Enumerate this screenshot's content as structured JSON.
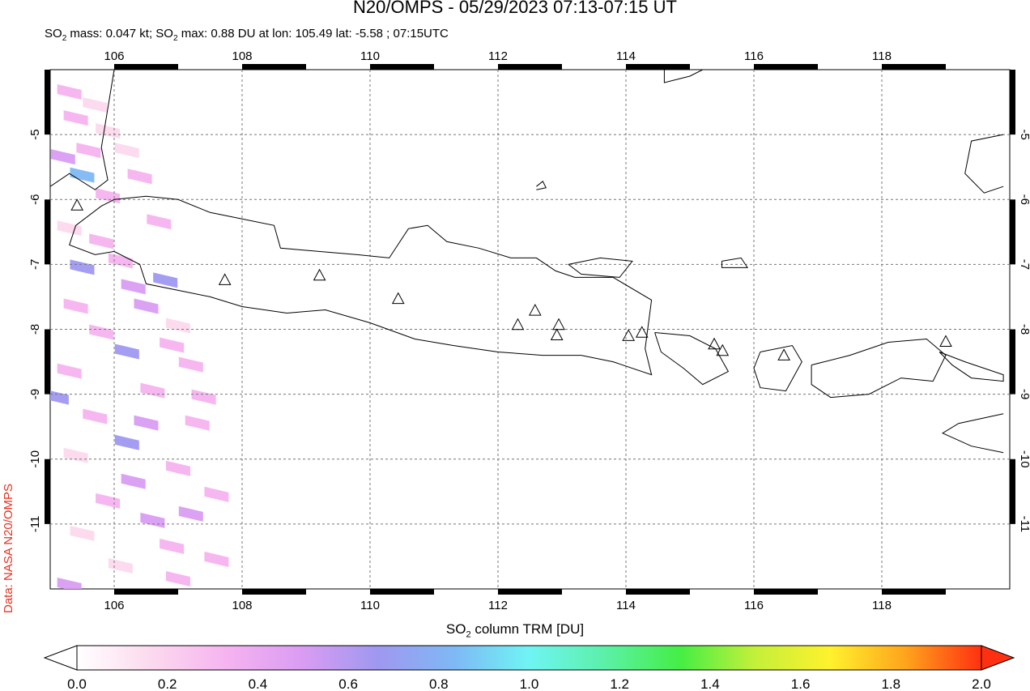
{
  "title": "N20/OMPS - 05/29/2023 07:13-07:15 UT",
  "subtitle": {
    "mass_prefix": "SO",
    "mass_sub": "2",
    "mass_text": " mass: 0.047 kt; SO",
    "max_sub": "2",
    "max_text": " max: 0.88 DU at lon: 105.49 lat: -5.58 ; 07:15UTC"
  },
  "credit": "Data: NASA N20/OMPS",
  "map": {
    "lon_range": [
      105.0,
      120.0
    ],
    "lat_range": [
      -12.0,
      -4.0
    ],
    "lon_ticks": [
      "106",
      "108",
      "110",
      "112",
      "114",
      "116",
      "118"
    ],
    "lat_ticks": [
      "-5",
      "-6",
      "-7",
      "-8",
      "-9",
      "-10",
      "-11"
    ],
    "grid": "dashed",
    "max_marker": {
      "lon": 105.49,
      "lat": -5.58
    }
  },
  "colorbar": {
    "label_prefix": "SO",
    "label_sub": "2",
    "label_suffix": " column TRM [DU]",
    "ticks": [
      "0.0",
      "0.2",
      "0.4",
      "0.6",
      "0.8",
      "1.0",
      "1.2",
      "1.4",
      "1.6",
      "1.8",
      "2.0"
    ],
    "range": [
      0.0,
      2.0
    ],
    "colors": [
      "#ffffff",
      "#fcd9ee",
      "#f5b3f0",
      "#d99cf2",
      "#9f98f0",
      "#7fb8f5",
      "#6ff4f4",
      "#5cf0a8",
      "#45ee45",
      "#c4f03a",
      "#fff12d",
      "#ffa31c",
      "#ff3011"
    ]
  },
  "volcanoes": [
    {
      "lon": 105.42,
      "lat": -6.1
    },
    {
      "lon": 107.73,
      "lat": -7.25
    },
    {
      "lon": 109.21,
      "lat": -7.18
    },
    {
      "lon": 110.44,
      "lat": -7.54
    },
    {
      "lon": 112.31,
      "lat": -7.94
    },
    {
      "lon": 112.58,
      "lat": -7.72
    },
    {
      "lon": 112.92,
      "lat": -8.1
    },
    {
      "lon": 112.95,
      "lat": -7.94
    },
    {
      "lon": 114.04,
      "lat": -8.11
    },
    {
      "lon": 114.25,
      "lat": -8.06
    },
    {
      "lon": 115.38,
      "lat": -8.24
    },
    {
      "lon": 115.51,
      "lat": -8.34
    },
    {
      "lon": 116.47,
      "lat": -8.41
    },
    {
      "lon": 119.0,
      "lat": -8.2
    }
  ],
  "so2_pixels": [
    {
      "lon": 105.3,
      "lat": -4.3,
      "v": 0.3
    },
    {
      "lon": 105.7,
      "lat": -4.5,
      "v": 0.2
    },
    {
      "lon": 105.4,
      "lat": -4.7,
      "v": 0.25
    },
    {
      "lon": 105.9,
      "lat": -4.9,
      "v": 0.15
    },
    {
      "lon": 105.2,
      "lat": -5.3,
      "v": 0.55
    },
    {
      "lon": 105.6,
      "lat": -5.2,
      "v": 0.35
    },
    {
      "lon": 106.2,
      "lat": -5.2,
      "v": 0.2
    },
    {
      "lon": 105.5,
      "lat": -5.58,
      "v": 0.88
    },
    {
      "lon": 106.4,
      "lat": -5.6,
      "v": 0.35
    },
    {
      "lon": 105.9,
      "lat": -5.9,
      "v": 0.3
    },
    {
      "lon": 106.7,
      "lat": -6.3,
      "v": 0.25
    },
    {
      "lon": 105.3,
      "lat": -6.4,
      "v": 0.2
    },
    {
      "lon": 105.8,
      "lat": -6.6,
      "v": 0.3
    },
    {
      "lon": 105.5,
      "lat": -7.0,
      "v": 0.65
    },
    {
      "lon": 106.1,
      "lat": -6.9,
      "v": 0.4
    },
    {
      "lon": 106.8,
      "lat": -7.2,
      "v": 0.6
    },
    {
      "lon": 106.3,
      "lat": -7.3,
      "v": 0.55
    },
    {
      "lon": 105.4,
      "lat": -7.6,
      "v": 0.3
    },
    {
      "lon": 106.5,
      "lat": -7.6,
      "v": 0.45
    },
    {
      "lon": 107.0,
      "lat": -7.9,
      "v": 0.2
    },
    {
      "lon": 105.8,
      "lat": -8.0,
      "v": 0.35
    },
    {
      "lon": 106.2,
      "lat": -8.3,
      "v": 0.65
    },
    {
      "lon": 106.9,
      "lat": -8.2,
      "v": 0.4
    },
    {
      "lon": 105.3,
      "lat": -8.6,
      "v": 0.3
    },
    {
      "lon": 107.2,
      "lat": -8.5,
      "v": 0.35
    },
    {
      "lon": 106.6,
      "lat": -8.9,
      "v": 0.3
    },
    {
      "lon": 105.1,
      "lat": -9.0,
      "v": 0.6
    },
    {
      "lon": 107.4,
      "lat": -9.0,
      "v": 0.4
    },
    {
      "lon": 105.7,
      "lat": -9.3,
      "v": 0.25
    },
    {
      "lon": 106.5,
      "lat": -9.4,
      "v": 0.55
    },
    {
      "lon": 107.3,
      "lat": -9.4,
      "v": 0.3
    },
    {
      "lon": 106.2,
      "lat": -9.7,
      "v": 0.6
    },
    {
      "lon": 105.4,
      "lat": -9.9,
      "v": 0.2
    },
    {
      "lon": 107.0,
      "lat": -10.1,
      "v": 0.25
    },
    {
      "lon": 106.3,
      "lat": -10.3,
      "v": 0.45
    },
    {
      "lon": 107.6,
      "lat": -10.5,
      "v": 0.3
    },
    {
      "lon": 105.9,
      "lat": -10.6,
      "v": 0.25
    },
    {
      "lon": 107.2,
      "lat": -10.8,
      "v": 0.55
    },
    {
      "lon": 106.6,
      "lat": -10.9,
      "v": 0.45
    },
    {
      "lon": 105.5,
      "lat": -11.1,
      "v": 0.2
    },
    {
      "lon": 106.9,
      "lat": -11.3,
      "v": 0.3
    },
    {
      "lon": 107.6,
      "lat": -11.5,
      "v": 0.35
    },
    {
      "lon": 105.3,
      "lat": -11.9,
      "v": 0.55
    },
    {
      "lon": 107.0,
      "lat": -11.8,
      "v": 0.25
    },
    {
      "lon": 106.1,
      "lat": -11.6,
      "v": 0.2
    }
  ],
  "coastlines": [
    [
      [
        106.0,
        -6.0
      ],
      [
        106.5,
        -5.95
      ],
      [
        107.0,
        -6.0
      ],
      [
        107.5,
        -6.2
      ],
      [
        108.0,
        -6.3
      ],
      [
        108.5,
        -6.4
      ],
      [
        108.6,
        -6.75
      ],
      [
        109.2,
        -6.8
      ],
      [
        109.8,
        -6.85
      ],
      [
        110.3,
        -6.9
      ],
      [
        110.6,
        -6.45
      ],
      [
        110.9,
        -6.4
      ],
      [
        111.2,
        -6.65
      ],
      [
        111.7,
        -6.75
      ],
      [
        112.2,
        -6.9
      ],
      [
        112.6,
        -6.9
      ],
      [
        112.9,
        -7.1
      ],
      [
        113.2,
        -7.2
      ],
      [
        113.8,
        -7.2
      ],
      [
        114.4,
        -7.55
      ],
      [
        114.3,
        -8.3
      ],
      [
        114.4,
        -8.7
      ],
      [
        113.8,
        -8.5
      ],
      [
        113.3,
        -8.4
      ],
      [
        112.7,
        -8.4
      ],
      [
        112.0,
        -8.35
      ],
      [
        111.3,
        -8.25
      ],
      [
        110.7,
        -8.15
      ],
      [
        110.0,
        -7.9
      ],
      [
        109.3,
        -7.7
      ],
      [
        108.7,
        -7.75
      ],
      [
        108.0,
        -7.65
      ],
      [
        107.5,
        -7.5
      ],
      [
        107.0,
        -7.4
      ],
      [
        106.5,
        -7.3
      ],
      [
        106.4,
        -7.0
      ],
      [
        106.0,
        -6.8
      ],
      [
        105.7,
        -6.85
      ],
      [
        105.3,
        -6.7
      ],
      [
        105.4,
        -6.4
      ],
      [
        105.8,
        -6.1
      ],
      [
        106.0,
        -6.0
      ]
    ],
    [
      [
        113.1,
        -7.0
      ],
      [
        113.6,
        -6.9
      ],
      [
        114.1,
        -6.95
      ],
      [
        113.9,
        -7.2
      ],
      [
        113.3,
        -7.15
      ],
      [
        113.1,
        -7.0
      ]
    ],
    [
      [
        114.45,
        -8.05
      ],
      [
        115.0,
        -8.1
      ],
      [
        115.4,
        -8.3
      ],
      [
        115.6,
        -8.65
      ],
      [
        115.2,
        -8.85
      ],
      [
        114.9,
        -8.6
      ],
      [
        114.55,
        -8.35
      ],
      [
        114.45,
        -8.05
      ]
    ],
    [
      [
        116.1,
        -8.35
      ],
      [
        116.6,
        -8.25
      ],
      [
        116.75,
        -8.5
      ],
      [
        116.5,
        -8.95
      ],
      [
        116.1,
        -8.9
      ],
      [
        116.0,
        -8.6
      ],
      [
        116.1,
        -8.35
      ]
    ],
    [
      [
        116.9,
        -8.55
      ],
      [
        117.5,
        -8.4
      ],
      [
        118.1,
        -8.2
      ],
      [
        118.7,
        -8.15
      ],
      [
        119.0,
        -8.4
      ],
      [
        118.8,
        -8.8
      ],
      [
        118.3,
        -8.75
      ],
      [
        117.8,
        -9.0
      ],
      [
        117.2,
        -9.05
      ],
      [
        116.9,
        -8.85
      ],
      [
        116.9,
        -8.55
      ]
    ],
    [
      [
        118.9,
        -8.35
      ],
      [
        119.3,
        -8.5
      ],
      [
        119.6,
        -8.6
      ],
      [
        119.9,
        -8.7
      ],
      [
        119.9,
        -8.8
      ],
      [
        119.4,
        -8.75
      ],
      [
        119.1,
        -8.55
      ],
      [
        118.9,
        -8.35
      ]
    ],
    [
      [
        119.9,
        -9.3
      ],
      [
        119.2,
        -9.45
      ],
      [
        118.95,
        -9.6
      ],
      [
        119.4,
        -9.8
      ],
      [
        119.9,
        -9.9
      ]
    ],
    [
      [
        106.0,
        -4.0
      ],
      [
        105.9,
        -4.6
      ],
      [
        105.8,
        -5.2
      ],
      [
        105.9,
        -5.7
      ],
      [
        105.7,
        -5.85
      ],
      [
        105.3,
        -5.6
      ],
      [
        105.0,
        -5.8
      ]
    ],
    [
      [
        114.6,
        -4.0
      ],
      [
        114.6,
        -4.2
      ],
      [
        115.0,
        -4.1
      ],
      [
        115.2,
        -4.0
      ]
    ],
    [
      [
        119.9,
        -5.0
      ],
      [
        119.4,
        -5.1
      ],
      [
        119.3,
        -5.6
      ],
      [
        119.6,
        -5.9
      ],
      [
        119.9,
        -5.8
      ]
    ],
    [
      [
        112.6,
        -5.8
      ],
      [
        112.7,
        -5.72
      ],
      [
        112.75,
        -5.82
      ],
      [
        112.6,
        -5.85
      ]
    ],
    [
      [
        115.5,
        -6.95
      ],
      [
        115.8,
        -6.9
      ],
      [
        115.9,
        -7.05
      ],
      [
        115.5,
        -7.05
      ],
      [
        115.5,
        -6.95
      ]
    ]
  ]
}
